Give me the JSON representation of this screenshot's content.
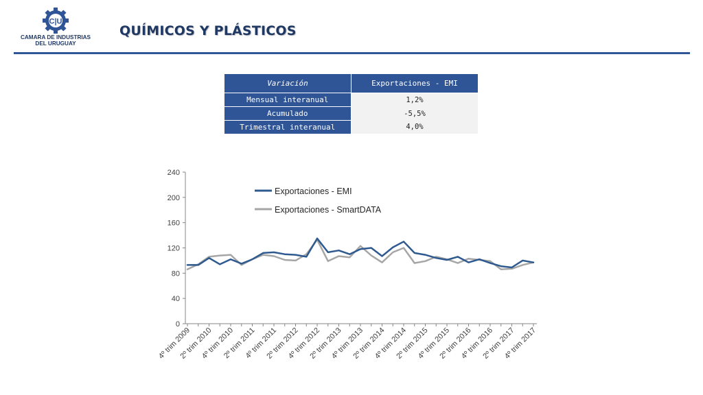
{
  "header": {
    "logo_initials": "C|U",
    "org_line1": "CAMARA DE INDUSTRIAS",
    "org_line2": "DEL URUGUAY",
    "title": "QUÍMICOS Y PLÁSTICOS"
  },
  "table": {
    "col1_header": "Variación",
    "col2_header": "Exportaciones - EMI",
    "rows": [
      {
        "label": "Mensual interanual",
        "value": "1,2%"
      },
      {
        "label": "Acumulado",
        "value": "-5,5%"
      },
      {
        "label": "Trimestral interanual",
        "value": "4,0%"
      }
    ]
  },
  "chart_data": {
    "type": "line",
    "title": "",
    "xlabel": "",
    "ylabel": "",
    "ylim": [
      0,
      240
    ],
    "yticks": [
      0,
      40,
      80,
      120,
      160,
      200,
      240
    ],
    "grid": false,
    "legend_position": "top-left inside",
    "x_tick_labels": [
      "4º trim 2009",
      "2º trim 2010",
      "4º trim 2010",
      "2º trim 2011",
      "4º trim 2011",
      "2º trim 2012",
      "4º trim 2012",
      "2º trim 2013",
      "4º trim 2013",
      "2º trim 2014",
      "4º trim 2014",
      "2º trim 2015",
      "4º trim 2015",
      "2º trim 2016",
      "4º trim 2016",
      "2º trim 2017",
      "4º trim 2017"
    ],
    "x_points": 33,
    "series": [
      {
        "name": "Exportaciones - EMI",
        "color": "#2f5a8f",
        "values": [
          93,
          93,
          104,
          94,
          102,
          95,
          102,
          112,
          113,
          110,
          109,
          106,
          135,
          113,
          116,
          110,
          118,
          120,
          107,
          121,
          130,
          112,
          109,
          104,
          101,
          106,
          97,
          102,
          96,
          91,
          89,
          100,
          97
        ]
      },
      {
        "name": "Exportaciones - SmartDATA",
        "color": "#a6a6a6",
        "values": [
          86,
          94,
          106,
          108,
          109,
          93,
          102,
          109,
          107,
          101,
          100,
          110,
          133,
          99,
          107,
          105,
          123,
          108,
          97,
          113,
          120,
          96,
          99,
          106,
          102,
          96,
          103,
          101,
          99,
          86,
          87,
          93,
          97
        ]
      }
    ]
  }
}
